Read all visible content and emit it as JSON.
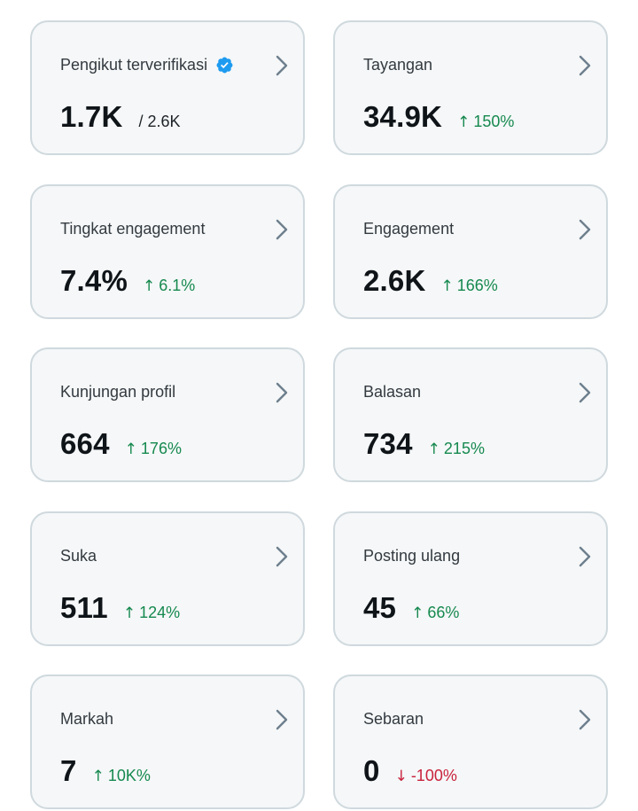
{
  "cards": [
    {
      "label": "Pengikut terverifikasi",
      "value": "1.7K",
      "total": "/ 2.6K",
      "verified_icon": "verified-badge-icon",
      "accent": "#1d9bf0"
    },
    {
      "label": "Tayangan",
      "value": "34.9K",
      "change": "150%",
      "direction": "up"
    },
    {
      "label": "Tingkat engagement",
      "value": "7.4%",
      "change": "6.1%",
      "direction": "up"
    },
    {
      "label": "Engagement",
      "value": "2.6K",
      "change": "166%",
      "direction": "up"
    },
    {
      "label": "Kunjungan profil",
      "value": "664",
      "change": "176%",
      "direction": "up"
    },
    {
      "label": "Balasan",
      "value": "734",
      "change": "215%",
      "direction": "up"
    },
    {
      "label": "Suka",
      "value": "511",
      "change": "124%",
      "direction": "up"
    },
    {
      "label": "Posting ulang",
      "value": "45",
      "change": "66%",
      "direction": "up"
    },
    {
      "label": "Markah",
      "value": "7",
      "change": "10K%",
      "direction": "up"
    },
    {
      "label": "Sebaran",
      "value": "0",
      "change": "-100%",
      "direction": "down"
    }
  ],
  "arrows": {
    "up": "↑",
    "down": "↓"
  },
  "colors": {
    "up": "#16894f",
    "down": "#c9223c",
    "card_bg": "#f5f7f8",
    "border": "#cfd9de",
    "chevron": "#6e7f8d"
  }
}
